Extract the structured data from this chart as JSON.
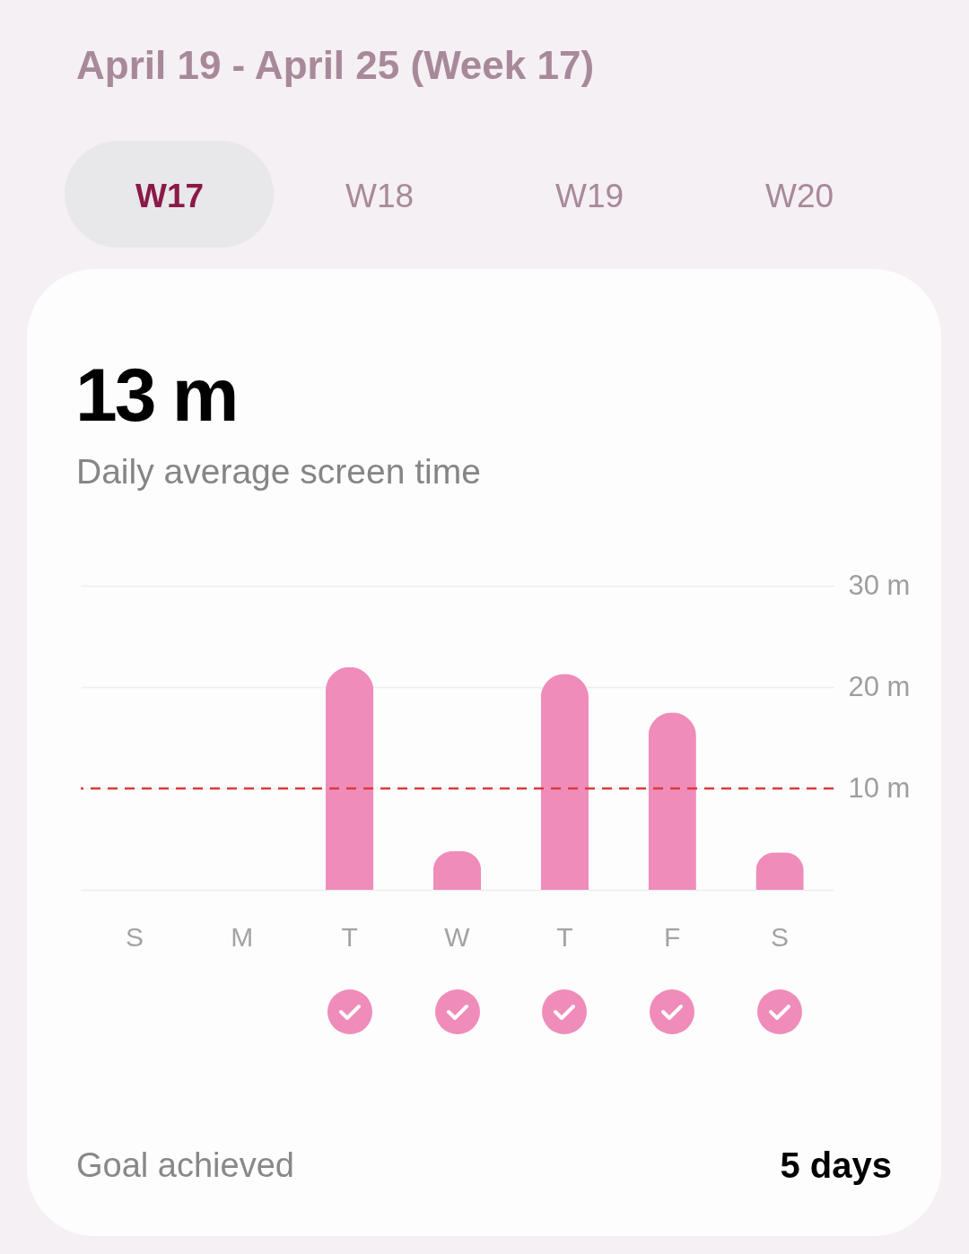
{
  "chart_data": {
    "type": "bar",
    "title": "April 19 - April 25 (Week 17)",
    "annotations": [
      "W17",
      "W18",
      "W19",
      "W20",
      "13 m",
      "Daily average screen time",
      "Goal achieved",
      "5 days"
    ],
    "categories": [
      "S",
      "M",
      "T",
      "W",
      "T",
      "F",
      "S"
    ],
    "values": [
      0,
      0,
      22,
      3.8,
      21.3,
      17.5,
      3.7
    ],
    "color": "#f08cb9",
    "ylim": [
      0,
      30
    ],
    "yticks": [
      {
        "value": 0,
        "label": null
      },
      {
        "value": 10,
        "label": "10 m"
      },
      {
        "value": 20,
        "label": "20 m"
      },
      {
        "value": 30,
        "label": "30 m"
      }
    ],
    "grid": "y",
    "ref_lines": [
      {
        "axis": "y",
        "value": 10,
        "color": "#d93b3b",
        "line_style": "dashed"
      }
    ]
  }
}
